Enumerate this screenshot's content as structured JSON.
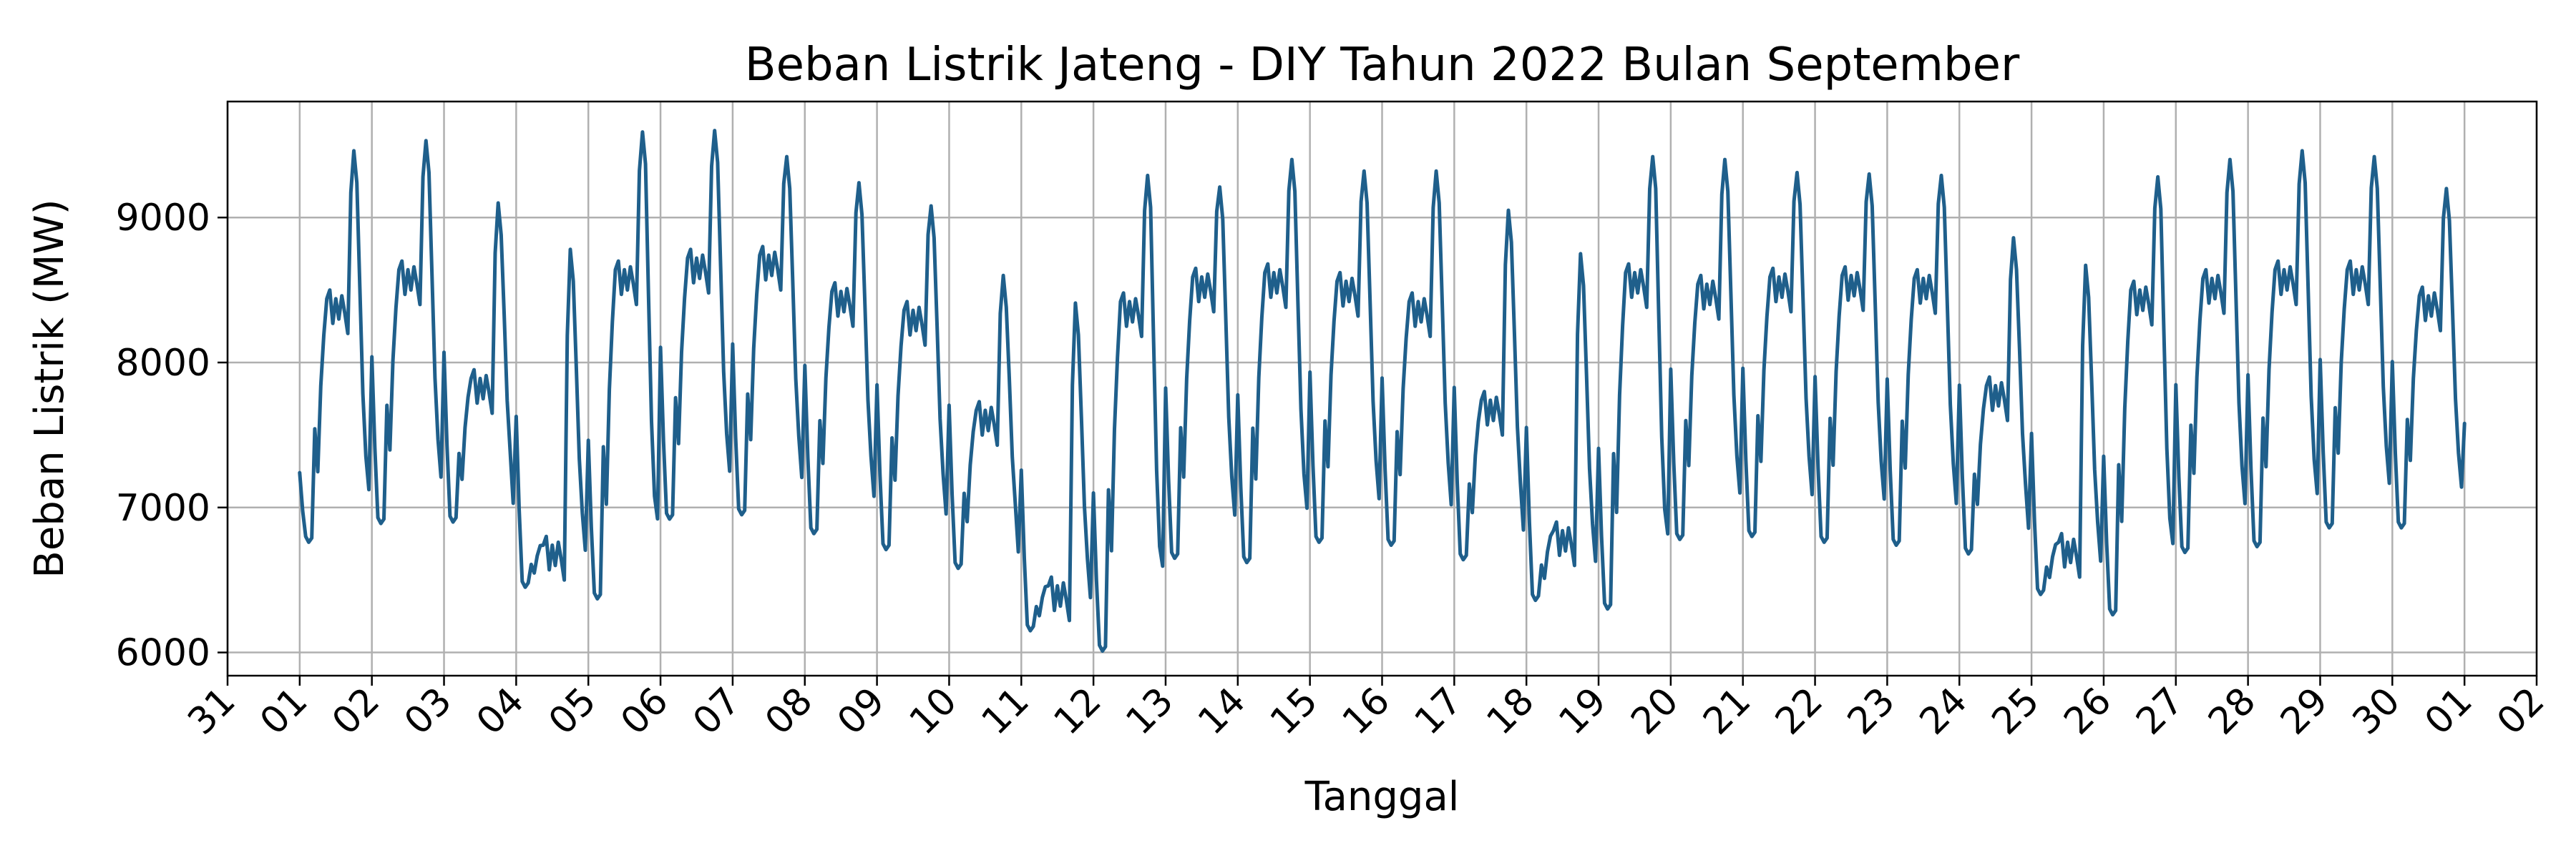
{
  "chart_data": {
    "type": "line",
    "title": "Beban Listrik Jateng - DIY Tahun 2022 Bulan September",
    "xlabel": "Tanggal",
    "ylabel": "Beban Listrik (MW)",
    "x_unit": "day of September 2022 (fractional, hourly)",
    "xlim": [
      -1,
      31
    ],
    "ylim": [
      5840,
      9800
    ],
    "grid": true,
    "line_color": "#1f5f8b",
    "x_ticks": [
      {
        "pos": -1,
        "label": "31"
      },
      {
        "pos": 0,
        "label": "01"
      },
      {
        "pos": 1,
        "label": "02"
      },
      {
        "pos": 2,
        "label": "03"
      },
      {
        "pos": 3,
        "label": "04"
      },
      {
        "pos": 4,
        "label": "05"
      },
      {
        "pos": 5,
        "label": "06"
      },
      {
        "pos": 6,
        "label": "07"
      },
      {
        "pos": 7,
        "label": "08"
      },
      {
        "pos": 8,
        "label": "09"
      },
      {
        "pos": 9,
        "label": "10"
      },
      {
        "pos": 10,
        "label": "11"
      },
      {
        "pos": 11,
        "label": "12"
      },
      {
        "pos": 12,
        "label": "13"
      },
      {
        "pos": 13,
        "label": "14"
      },
      {
        "pos": 14,
        "label": "15"
      },
      {
        "pos": 15,
        "label": "16"
      },
      {
        "pos": 16,
        "label": "17"
      },
      {
        "pos": 17,
        "label": "18"
      },
      {
        "pos": 18,
        "label": "19"
      },
      {
        "pos": 19,
        "label": "20"
      },
      {
        "pos": 20,
        "label": "21"
      },
      {
        "pos": 21,
        "label": "22"
      },
      {
        "pos": 22,
        "label": "23"
      },
      {
        "pos": 23,
        "label": "24"
      },
      {
        "pos": 24,
        "label": "25"
      },
      {
        "pos": 25,
        "label": "26"
      },
      {
        "pos": 26,
        "label": "27"
      },
      {
        "pos": 27,
        "label": "28"
      },
      {
        "pos": 28,
        "label": "29"
      },
      {
        "pos": 29,
        "label": "30"
      },
      {
        "pos": 30,
        "label": "01"
      },
      {
        "pos": 31,
        "label": "02"
      }
    ],
    "y_ticks": [
      {
        "value": 6000,
        "label": "6000"
      },
      {
        "value": 7000,
        "label": "7000"
      },
      {
        "value": 8000,
        "label": "8000"
      },
      {
        "value": 9000,
        "label": "9000"
      }
    ],
    "day_profiles": [
      {
        "day": "01",
        "min": 6760,
        "midday": 8500,
        "peak": 9460
      },
      {
        "day": "02",
        "min": 6890,
        "midday": 8700,
        "peak": 9530
      },
      {
        "day": "03",
        "min": 6900,
        "midday": 7950,
        "peak": 9100
      },
      {
        "day": "04",
        "min": 6450,
        "midday": 6800,
        "peak": 8780
      },
      {
        "day": "05",
        "min": 6370,
        "midday": 8700,
        "peak": 9590
      },
      {
        "day": "06",
        "min": 6920,
        "midday": 8780,
        "peak": 9600
      },
      {
        "day": "07",
        "min": 6950,
        "midday": 8800,
        "peak": 9420
      },
      {
        "day": "08",
        "min": 6820,
        "midday": 8550,
        "peak": 9240
      },
      {
        "day": "09",
        "min": 6710,
        "midday": 8420,
        "peak": 9080
      },
      {
        "day": "10",
        "min": 6580,
        "midday": 7730,
        "peak": 8600
      },
      {
        "day": "11",
        "min": 6150,
        "midday": 6520,
        "peak": 8410
      },
      {
        "day": "12",
        "min": 6010,
        "midday": 8480,
        "peak": 9290
      },
      {
        "day": "13",
        "min": 6650,
        "midday": 8650,
        "peak": 9210
      },
      {
        "day": "14",
        "min": 6620,
        "midday": 8680,
        "peak": 9400
      },
      {
        "day": "15",
        "min": 6760,
        "midday": 8620,
        "peak": 9320
      },
      {
        "day": "16",
        "min": 6740,
        "midday": 8480,
        "peak": 9320
      },
      {
        "day": "17",
        "min": 6640,
        "midday": 7800,
        "peak": 9050
      },
      {
        "day": "18",
        "min": 6360,
        "midday": 6900,
        "peak": 8750
      },
      {
        "day": "19",
        "min": 6300,
        "midday": 8680,
        "peak": 9420
      },
      {
        "day": "20",
        "min": 6780,
        "midday": 8600,
        "peak": 9400
      },
      {
        "day": "21",
        "min": 6800,
        "midday": 8650,
        "peak": 9310
      },
      {
        "day": "22",
        "min": 6760,
        "midday": 8660,
        "peak": 9300
      },
      {
        "day": "23",
        "min": 6740,
        "midday": 8640,
        "peak": 9290
      },
      {
        "day": "24",
        "min": 6680,
        "midday": 7900,
        "peak": 8860
      },
      {
        "day": "25",
        "min": 6400,
        "midday": 6820,
        "peak": 8670
      },
      {
        "day": "26",
        "min": 6260,
        "midday": 8560,
        "peak": 9280
      },
      {
        "day": "27",
        "min": 6690,
        "midday": 8640,
        "peak": 9400
      },
      {
        "day": "28",
        "min": 6730,
        "midday": 8700,
        "peak": 9460
      },
      {
        "day": "29",
        "min": 6860,
        "midday": 8700,
        "peak": 9420
      },
      {
        "day": "30",
        "min": 6860,
        "midday": 8520,
        "peak": 9200
      }
    ],
    "start_value": 7240,
    "end_value": 7580
  }
}
